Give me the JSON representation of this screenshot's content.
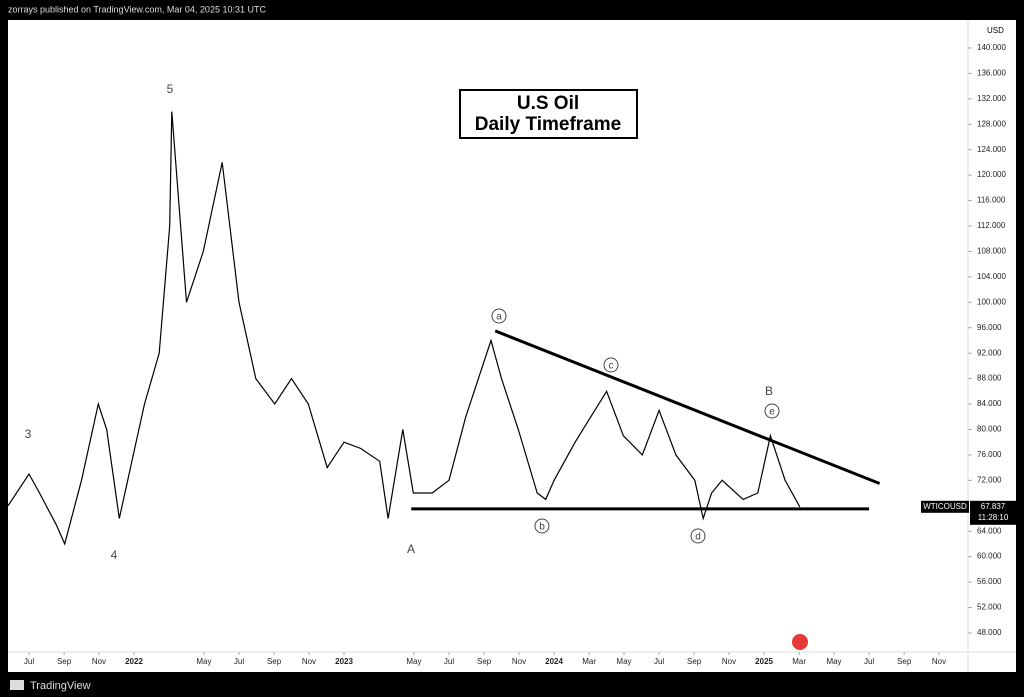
{
  "header": "zorrays published on TradingView.com, Mar 04, 2025 10:31 UTC",
  "footer": "TradingView",
  "chart_data": {
    "type": "line",
    "title": "U.S Oil",
    "subtitle": "Daily Timeframe",
    "y_label": "USD",
    "xlim": [
      2021.4,
      2025.971
    ],
    "xticks": [
      {
        "value": 2021.5,
        "label": "Jul"
      },
      {
        "value": 2021.667,
        "label": "Sep"
      },
      {
        "value": 2021.833,
        "label": "Nov"
      },
      {
        "value": 2022,
        "label": "2022"
      },
      {
        "value": 2022.333,
        "label": "May"
      },
      {
        "value": 2022.5,
        "label": "Jul"
      },
      {
        "value": 2022.667,
        "label": "Sep"
      },
      {
        "value": 2022.833,
        "label": "Nov"
      },
      {
        "value": 2023,
        "label": "2023"
      },
      {
        "value": 2023.333,
        "label": "May"
      },
      {
        "value": 2023.5,
        "label": "Jul"
      },
      {
        "value": 2023.667,
        "label": "Sep"
      },
      {
        "value": 2023.833,
        "label": "Nov"
      },
      {
        "value": 2024,
        "label": "2024"
      },
      {
        "value": 2024.167,
        "label": "Mar"
      },
      {
        "value": 2024.333,
        "label": "May"
      },
      {
        "value": 2024.5,
        "label": "Jul"
      },
      {
        "value": 2024.667,
        "label": "Sep"
      },
      {
        "value": 2024.833,
        "label": "Nov"
      },
      {
        "value": 2025,
        "label": "2025"
      },
      {
        "value": 2025.167,
        "label": "Mar"
      },
      {
        "value": 2025.333,
        "label": "May"
      },
      {
        "value": 2025.5,
        "label": "Jul"
      },
      {
        "value": 2025.667,
        "label": "Sep"
      },
      {
        "value": 2025.833,
        "label": "Nov"
      }
    ],
    "ylim": [
      45,
      144.4
    ],
    "yticks": [
      {
        "value": 48,
        "label": "48.000"
      },
      {
        "value": 52,
        "label": "52.000"
      },
      {
        "value": 56,
        "label": "56.000"
      },
      {
        "value": 60,
        "label": "60.000"
      },
      {
        "value": 64,
        "label": "64.000"
      },
      {
        "value": 68,
        "label": "68.000"
      },
      {
        "value": 72,
        "label": "72.000"
      },
      {
        "value": 76,
        "label": "76.000"
      },
      {
        "value": 80,
        "label": "80.000"
      },
      {
        "value": 84,
        "label": "84.000"
      },
      {
        "value": 88,
        "label": "88.000"
      },
      {
        "value": 92,
        "label": "92.000"
      },
      {
        "value": 96,
        "label": "96.000"
      },
      {
        "value": 100,
        "label": "100.000"
      },
      {
        "value": 104,
        "label": "104.000"
      },
      {
        "value": 108,
        "label": "108.000"
      },
      {
        "value": 112,
        "label": "112.000"
      },
      {
        "value": 116,
        "label": "116.000"
      },
      {
        "value": 120,
        "label": "120.000"
      },
      {
        "value": 124,
        "label": "124.000"
      },
      {
        "value": 128,
        "label": "128.000"
      },
      {
        "value": 132,
        "label": "132.000"
      },
      {
        "value": 136,
        "label": "136.000"
      },
      {
        "value": 140,
        "label": "140.000"
      }
    ],
    "series": [
      {
        "name": "WTICOUSD",
        "color": "#000000",
        "x": [
          2021.4,
          2021.5,
          2021.55,
          2021.63,
          2021.67,
          2021.75,
          2021.83,
          2021.87,
          2021.93,
          2021.97,
          2022.05,
          2022.12,
          2022.17,
          2022.18,
          2022.25,
          2022.33,
          2022.42,
          2022.5,
          2022.58,
          2022.67,
          2022.75,
          2022.83,
          2022.92,
          2023.0,
          2023.08,
          2023.17,
          2023.21,
          2023.28,
          2023.33,
          2023.42,
          2023.5,
          2023.58,
          2023.7,
          2023.75,
          2023.83,
          2023.92,
          2023.96,
          2024.0,
          2024.1,
          2024.25,
          2024.33,
          2024.42,
          2024.5,
          2024.58,
          2024.67,
          2024.71,
          2024.75,
          2024.8,
          2024.9,
          2024.97,
          2025.03,
          2025.1,
          2025.17
        ],
        "values": [
          68,
          73,
          70,
          65,
          62,
          72,
          84,
          80,
          66,
          72,
          84,
          92,
          112,
          130,
          100,
          108,
          122,
          100,
          88,
          84,
          88,
          84,
          74,
          78,
          77,
          75,
          66,
          80,
          70,
          70,
          72,
          82,
          94,
          88,
          80,
          70,
          69,
          72,
          78,
          86,
          79,
          76,
          83,
          76,
          72,
          66,
          70,
          72,
          69,
          70,
          79,
          72,
          67.837
        ]
      }
    ],
    "trend_lines": [
      {
        "x": [
          2023.72,
          2025.55
        ],
        "values": [
          95.5,
          71.5
        ]
      },
      {
        "x": [
          2023.32,
          2025.5
        ],
        "values": [
          67.5,
          67.5
        ]
      }
    ],
    "annotations": [
      "5",
      "3",
      "4",
      "A",
      "a",
      "b",
      "c",
      "d",
      "e",
      "B"
    ],
    "last_price": 67.837,
    "countdown": "11:28:10"
  }
}
